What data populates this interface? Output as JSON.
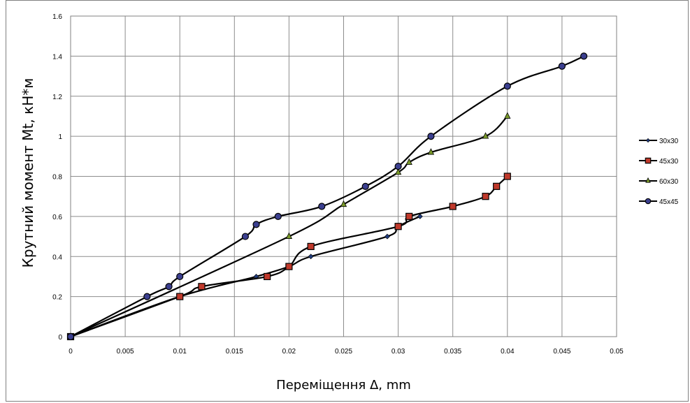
{
  "chart_data": {
    "type": "line",
    "title": "",
    "xlabel": "Переміщення Δ, mm",
    "ylabel": "Крутний момент Mt, кН*м",
    "xlim": [
      0,
      0.05
    ],
    "ylim": [
      0,
      1.6
    ],
    "xticks": [
      0,
      0.005,
      0.01,
      0.015,
      0.02,
      0.025,
      0.03,
      0.035,
      0.04,
      0.045,
      0.05
    ],
    "xtick_labels": [
      "0",
      "0.005",
      "0.01",
      "0.015",
      "0.02",
      "0.025",
      "0.03",
      "0.035",
      "0.04",
      "0.045",
      "0.05"
    ],
    "yticks": [
      0,
      0.2,
      0.4,
      0.6,
      0.8,
      1,
      1.2,
      1.4,
      1.6
    ],
    "ytick_labels": [
      "0",
      "0.2",
      "0.4",
      "0.6",
      "0.8",
      "1",
      "1.2",
      "1.4",
      "1.6"
    ],
    "grid": true,
    "legend_position": "right",
    "series": [
      {
        "name": "30x30",
        "marker": "diamond",
        "color": "#1f3a7a",
        "x": [
          0,
          0.01,
          0.017,
          0.02,
          0.022,
          0.029,
          0.03,
          0.032
        ],
        "y": [
          0,
          0.2,
          0.3,
          0.35,
          0.4,
          0.5,
          0.55,
          0.6
        ]
      },
      {
        "name": "45x30",
        "marker": "square",
        "color": "#c0392b",
        "x": [
          0,
          0.01,
          0.012,
          0.018,
          0.02,
          0.022,
          0.03,
          0.031,
          0.035,
          0.038,
          0.039,
          0.04
        ],
        "y": [
          0,
          0.2,
          0.25,
          0.3,
          0.35,
          0.45,
          0.55,
          0.6,
          0.65,
          0.7,
          0.75,
          0.8
        ]
      },
      {
        "name": "60x30",
        "marker": "triangle",
        "color": "#7a9a2a",
        "x": [
          0,
          0.02,
          0.025,
          0.03,
          0.031,
          0.033,
          0.038,
          0.04
        ],
        "y": [
          0,
          0.5,
          0.66,
          0.82,
          0.87,
          0.92,
          1.0,
          1.1
        ]
      },
      {
        "name": "45x45",
        "marker": "circle",
        "color": "#3b3f8f",
        "x": [
          0,
          0.007,
          0.009,
          0.01,
          0.016,
          0.017,
          0.019,
          0.023,
          0.027,
          0.03,
          0.033,
          0.04,
          0.045,
          0.047
        ],
        "y": [
          0,
          0.2,
          0.25,
          0.3,
          0.5,
          0.56,
          0.6,
          0.65,
          0.75,
          0.85,
          1.0,
          1.25,
          1.35,
          1.4
        ]
      }
    ]
  }
}
